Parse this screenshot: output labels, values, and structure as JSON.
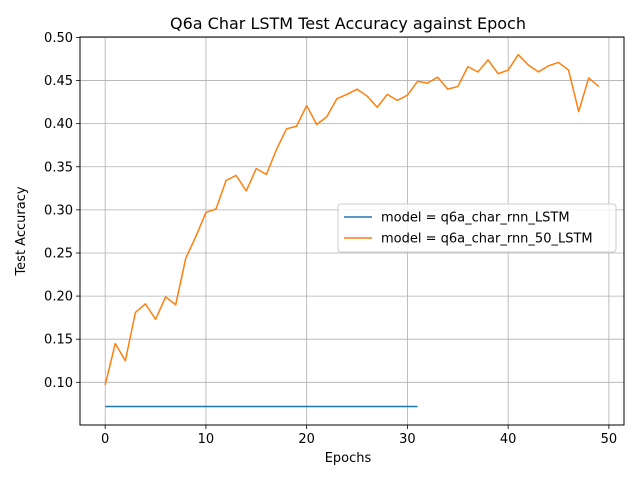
{
  "chart_data": {
    "type": "line",
    "title": "Q6a Char LSTM Test Accuracy against Epoch",
    "xlabel": "Epochs",
    "ylabel": "Test Accuracy",
    "xlim": [
      -2.5,
      51.5
    ],
    "ylim": [
      0.0505,
      0.5005
    ],
    "xticks": [
      0,
      10,
      20,
      30,
      40,
      50
    ],
    "yticks": [
      0.1,
      0.15,
      0.2,
      0.25,
      0.3,
      0.35,
      0.4,
      0.45,
      0.5
    ],
    "ytick_labels": [
      "0.10",
      "0.15",
      "0.20",
      "0.25",
      "0.30",
      "0.35",
      "0.40",
      "0.45",
      "0.50"
    ],
    "grid": true,
    "legend_position": "center-right",
    "series": [
      {
        "name": "model = q6a_char_rnn_LSTM",
        "color": "#1f77b4",
        "x": [
          0,
          1,
          2,
          3,
          4,
          5,
          6,
          7,
          8,
          9,
          10,
          11,
          12,
          13,
          14,
          15,
          16,
          17,
          18,
          19,
          20,
          21,
          22,
          23,
          24,
          25,
          26,
          27,
          28,
          29,
          30,
          31
        ],
        "y": [
          0.072,
          0.072,
          0.072,
          0.072,
          0.072,
          0.072,
          0.072,
          0.072,
          0.072,
          0.072,
          0.072,
          0.072,
          0.072,
          0.072,
          0.072,
          0.072,
          0.072,
          0.072,
          0.072,
          0.072,
          0.072,
          0.072,
          0.072,
          0.072,
          0.072,
          0.072,
          0.072,
          0.072,
          0.072,
          0.072,
          0.072,
          0.072
        ]
      },
      {
        "name": "model = q6a_char_rnn_50_LSTM",
        "color": "#ff7f0e",
        "x": [
          0,
          1,
          2,
          3,
          4,
          5,
          6,
          7,
          8,
          9,
          10,
          11,
          12,
          13,
          14,
          15,
          16,
          17,
          18,
          19,
          20,
          21,
          22,
          23,
          24,
          25,
          26,
          27,
          28,
          29,
          30,
          31,
          32,
          33,
          34,
          35,
          36,
          37,
          38,
          39,
          40,
          41,
          42,
          43,
          44,
          45,
          46,
          47,
          48,
          49
        ],
        "y": [
          0.097,
          0.145,
          0.125,
          0.181,
          0.191,
          0.173,
          0.199,
          0.19,
          0.244,
          0.269,
          0.297,
          0.301,
          0.334,
          0.34,
          0.322,
          0.348,
          0.341,
          0.37,
          0.394,
          0.397,
          0.421,
          0.399,
          0.408,
          0.429,
          0.434,
          0.44,
          0.432,
          0.419,
          0.434,
          0.427,
          0.433,
          0.449,
          0.447,
          0.454,
          0.44,
          0.443,
          0.466,
          0.46,
          0.474,
          0.458,
          0.462,
          0.48,
          0.468,
          0.46,
          0.467,
          0.471,
          0.462,
          0.414,
          0.453,
          0.443
        ]
      }
    ]
  }
}
